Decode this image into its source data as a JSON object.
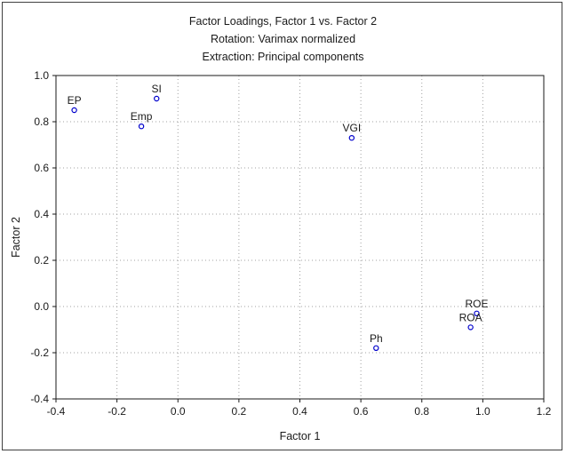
{
  "chart_data": {
    "type": "scatter",
    "title_lines": [
      "Factor Loadings, Factor 1 vs. Factor 2",
      "Rotation: Varimax normalized",
      "Extraction: Principal components"
    ],
    "xlabel": "Factor 1",
    "ylabel": "Factor 2",
    "xlim": [
      -0.4,
      1.2
    ],
    "ylim": [
      -0.4,
      1.0
    ],
    "xticks": [
      "-0.4",
      "-0.2",
      "0.0",
      "0.2",
      "0.4",
      "0.6",
      "0.8",
      "1.0",
      "1.2"
    ],
    "yticks": [
      "-0.4",
      "-0.2",
      "0.0",
      "0.2",
      "0.4",
      "0.6",
      "0.8",
      "1.0"
    ],
    "grid": true,
    "marker_color": "#0000cc",
    "points": [
      {
        "label": "EP",
        "x": -0.34,
        "y": 0.85
      },
      {
        "label": "SI",
        "x": -0.07,
        "y": 0.9
      },
      {
        "label": "Emp",
        "x": -0.12,
        "y": 0.78
      },
      {
        "label": "VGI",
        "x": 0.57,
        "y": 0.73
      },
      {
        "label": "ROE",
        "x": 0.98,
        "y": -0.03
      },
      {
        "label": "ROA",
        "x": 0.96,
        "y": -0.09
      },
      {
        "label": "Ph",
        "x": 0.65,
        "y": -0.18
      }
    ]
  }
}
